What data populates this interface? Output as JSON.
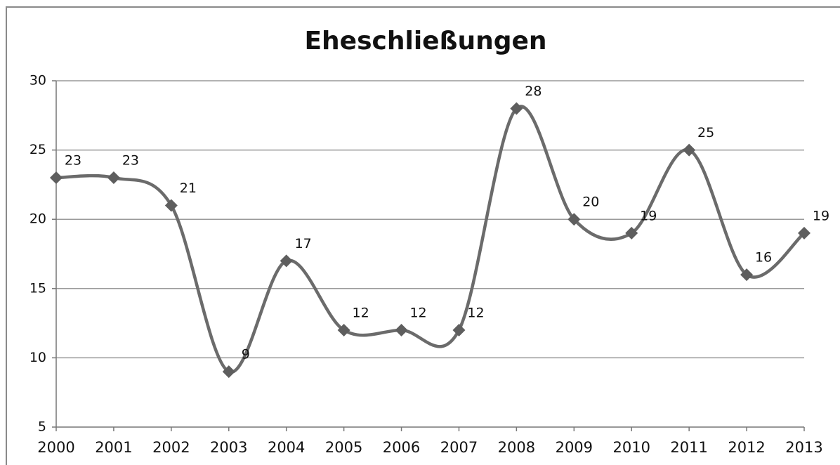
{
  "chart_data": {
    "type": "line",
    "title": "Eheschließungen",
    "categories": [
      "2000",
      "2001",
      "2002",
      "2003",
      "2004",
      "2005",
      "2006",
      "2007",
      "2008",
      "2009",
      "2010",
      "2011",
      "2012",
      "2013"
    ],
    "values": [
      23,
      23,
      21,
      9,
      17,
      12,
      12,
      12,
      28,
      20,
      19,
      25,
      16,
      19
    ],
    "color": "#6b6b6b",
    "ylim": [
      5,
      30
    ],
    "yticks": [
      5,
      10,
      15,
      20,
      25,
      30
    ],
    "grid": true,
    "smooth": true
  }
}
